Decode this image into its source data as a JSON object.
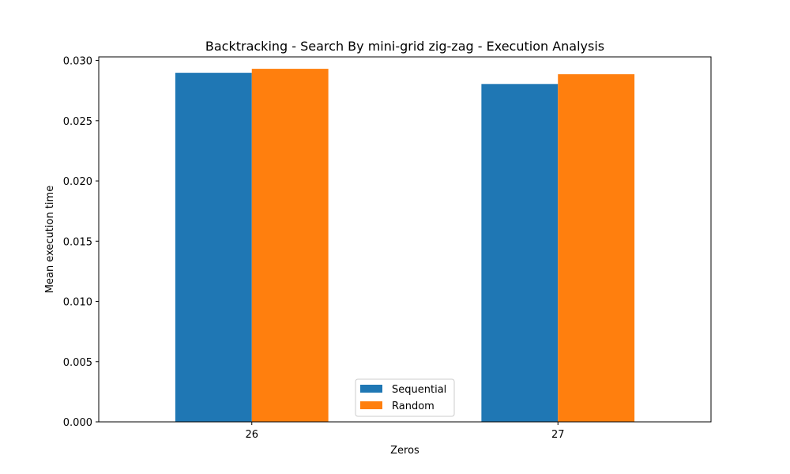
{
  "chart_data": {
    "type": "bar",
    "title": "Backtracking - Search By mini-grid zig-zag - Execution Analysis",
    "xlabel": "Zeros",
    "ylabel": "Mean execution time",
    "categories": [
      "26",
      "27"
    ],
    "series": [
      {
        "name": "Sequential",
        "color": "#1f77b4",
        "values": [
          0.02898,
          0.02805
        ]
      },
      {
        "name": "Random",
        "color": "#ff7f0e",
        "values": [
          0.02931,
          0.02886
        ]
      }
    ],
    "ylim": [
      0,
      0.0303
    ],
    "yticks": [
      "0.000",
      "0.005",
      "0.010",
      "0.015",
      "0.020",
      "0.025",
      "0.030"
    ],
    "legend_position": "lower-center",
    "grid": false
  }
}
